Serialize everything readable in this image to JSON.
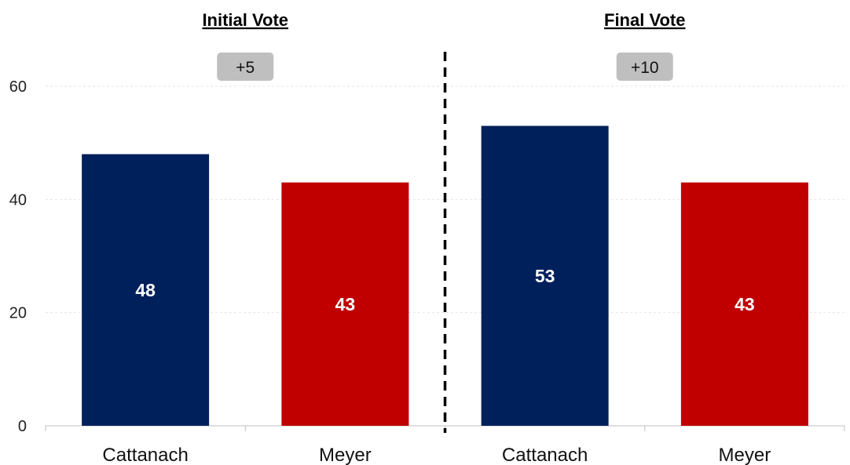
{
  "chart_data": {
    "type": "bar",
    "ylim": [
      0,
      60
    ],
    "yticks": [
      0,
      20,
      40,
      60
    ],
    "grid": true,
    "divider": "dashed vertical line between panels",
    "panels": [
      {
        "title": "Initial Vote",
        "difference_label": "+5",
        "categories": [
          "Cattanach",
          "Meyer"
        ],
        "values": [
          48,
          43
        ],
        "colors": [
          "#00205b",
          "#c00000"
        ]
      },
      {
        "title": "Final Vote",
        "difference_label": "+10",
        "categories": [
          "Cattanach",
          "Meyer"
        ],
        "values": [
          53,
          43
        ],
        "colors": [
          "#00205b",
          "#c00000"
        ]
      }
    ]
  },
  "colors": {
    "difference_box": "#bfbfbf",
    "divider": "#000000"
  }
}
